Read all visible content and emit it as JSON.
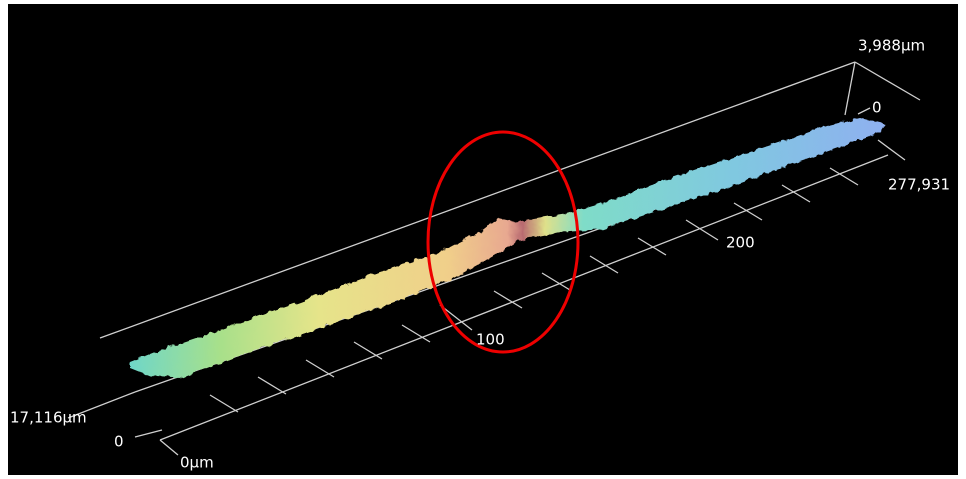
{
  "labels": {
    "z_max": "3,988µm",
    "z_zero": "0",
    "y_max": "277,931",
    "x_tick_200": "200",
    "x_tick_100": "100",
    "y_left": "17,116µm",
    "left_zero": "0",
    "x_zero": "0µm"
  }
}
